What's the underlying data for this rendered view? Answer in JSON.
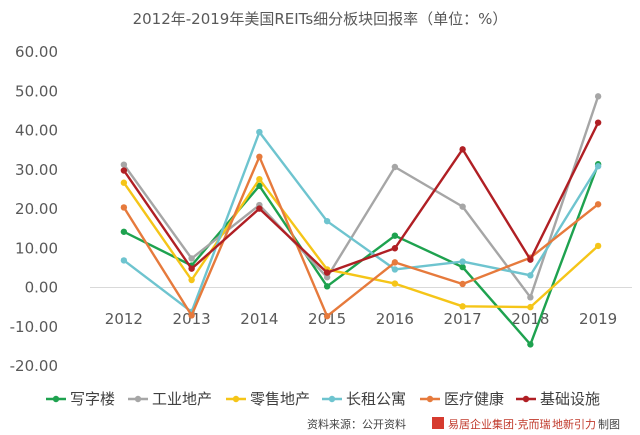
{
  "chart_data": {
    "type": "line",
    "title": "2012年-2019年美国REITs细分板块回报率（单位：%）",
    "xlabel": "",
    "ylabel": "",
    "categories": [
      "2012",
      "2013",
      "2014",
      "2015",
      "2016",
      "2017",
      "2018",
      "2019"
    ],
    "ylim": [
      -20,
      60
    ],
    "yticks": [
      "-20.00",
      "-10.00",
      "0.00",
      "10.00",
      "20.00",
      "30.00",
      "40.00",
      "50.00",
      "60.00"
    ],
    "grid": false,
    "legend_position": "bottom",
    "series": [
      {
        "name": "写字楼",
        "color": "#1ea24f",
        "values": [
          14.2,
          5.6,
          25.9,
          0.3,
          13.2,
          5.2,
          -14.5,
          31.4
        ]
      },
      {
        "name": "工业地产",
        "color": "#a6a6a6",
        "values": [
          31.3,
          7.4,
          21.0,
          2.6,
          30.7,
          20.6,
          -2.5,
          48.7
        ]
      },
      {
        "name": "零售地产",
        "color": "#f5c518",
        "values": [
          26.7,
          1.9,
          27.6,
          4.6,
          1.0,
          -4.8,
          -5.0,
          10.6
        ]
      },
      {
        "name": "长租公寓",
        "color": "#6ec4cf",
        "values": [
          6.9,
          -6.2,
          39.6,
          16.9,
          4.6,
          6.6,
          3.1,
          30.9
        ]
      },
      {
        "name": "医疗健康",
        "color": "#e67a3c",
        "values": [
          20.4,
          -7.1,
          33.3,
          -7.3,
          6.4,
          0.9,
          7.6,
          21.2
        ]
      },
      {
        "name": "基础设施",
        "color": "#b01f24",
        "values": [
          29.8,
          4.8,
          20.1,
          3.8,
          10.0,
          35.2,
          7.1,
          42.0
        ]
      }
    ]
  },
  "source": {
    "text": "资料来源：公开资料",
    "logo": "易居企业集团·克而瑞",
    "logo2": "地新引力",
    "suffix": "制图"
  }
}
